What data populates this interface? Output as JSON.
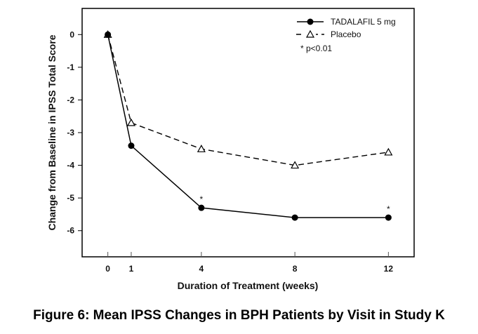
{
  "chart_data": {
    "type": "line",
    "title": "Figure 6: Mean IPSS Changes in BPH Patients by Visit in Study K",
    "xlabel": "Duration of Treatment (weeks)",
    "ylabel": "Change from Baseline in IPSS Total Score",
    "x": [
      0,
      1,
      4,
      8,
      12
    ],
    "x_tick_labels": [
      "0",
      "1",
      "4",
      "8",
      "12"
    ],
    "y_ticks": [
      0,
      -1,
      -2,
      -3,
      -4,
      -5,
      -6
    ],
    "y_tick_labels": [
      "0",
      "-1",
      "-2",
      "-3",
      "-4",
      "-5",
      "-6"
    ],
    "xlim": [
      -1.1,
      13.1
    ],
    "ylim": [
      -6.8,
      0.8
    ],
    "grid": false,
    "legend_position": "top-right",
    "series": [
      {
        "name": "TADALAFIL 5 mg",
        "marker": "filled-circle",
        "line": "solid",
        "color": "#000000",
        "values": [
          0,
          -3.4,
          -5.3,
          -5.6,
          -5.6
        ],
        "significant": [
          false,
          false,
          true,
          false,
          true
        ]
      },
      {
        "name": "Placebo",
        "marker": "open-triangle",
        "line": "dashed",
        "color": "#000000",
        "values": [
          0,
          -2.7,
          -3.5,
          -4.0,
          -3.6
        ],
        "significant": [
          false,
          false,
          false,
          false,
          false
        ]
      }
    ],
    "annotations": {
      "significance_marker": "*",
      "significance_note": "* p<0.01"
    }
  }
}
